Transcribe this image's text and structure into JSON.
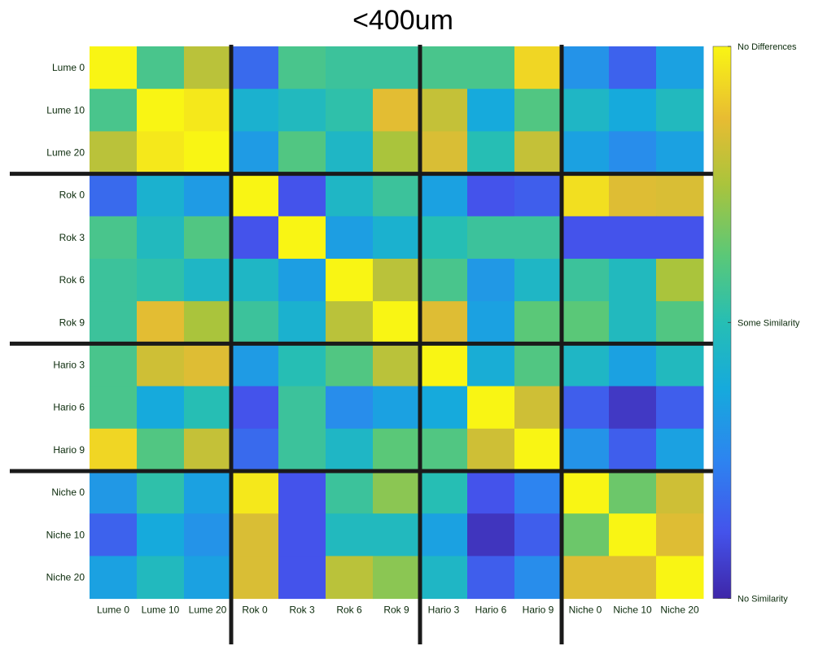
{
  "chart_data": {
    "type": "heatmap",
    "title": "<400um",
    "rows": [
      "Lume 0",
      "Lume 10",
      "Lume 20",
      "Rok 0",
      "Rok 3",
      "Rok 6",
      "Rok 9",
      "Hario 3",
      "Hario 6",
      "Hario 9",
      "Niche 0",
      "Niche 10",
      "Niche 20"
    ],
    "columns": [
      "Lume 0",
      "Lume 10",
      "Lume 20",
      "Rok 0",
      "Rok 3",
      "Rok 6",
      "Rok 9",
      "Hario 3",
      "Hario 6",
      "Hario 9",
      "Niche 0",
      "Niche 10",
      "Niche 20"
    ],
    "values": [
      [
        1.0,
        0.58,
        0.78,
        0.18,
        0.58,
        0.55,
        0.55,
        0.58,
        0.58,
        0.93,
        0.3,
        0.16,
        0.35
      ],
      [
        0.58,
        1.0,
        0.97,
        0.42,
        0.47,
        0.52,
        0.86,
        0.8,
        0.38,
        0.6,
        0.45,
        0.38,
        0.47
      ],
      [
        0.78,
        0.97,
        1.0,
        0.33,
        0.6,
        0.45,
        0.75,
        0.84,
        0.5,
        0.8,
        0.35,
        0.28,
        0.35
      ],
      [
        0.18,
        0.42,
        0.33,
        1.0,
        0.12,
        0.45,
        0.55,
        0.35,
        0.12,
        0.15,
        0.95,
        0.85,
        0.84
      ],
      [
        0.58,
        0.47,
        0.6,
        0.12,
        1.0,
        0.34,
        0.42,
        0.5,
        0.55,
        0.55,
        0.12,
        0.12,
        0.12
      ],
      [
        0.55,
        0.52,
        0.45,
        0.45,
        0.34,
        1.0,
        0.78,
        0.58,
        0.32,
        0.45,
        0.55,
        0.47,
        0.75
      ],
      [
        0.55,
        0.86,
        0.75,
        0.55,
        0.42,
        0.78,
        1.0,
        0.85,
        0.35,
        0.62,
        0.62,
        0.47,
        0.6
      ],
      [
        0.58,
        0.82,
        0.85,
        0.33,
        0.5,
        0.6,
        0.78,
        1.0,
        0.4,
        0.6,
        0.45,
        0.35,
        0.47
      ],
      [
        0.58,
        0.38,
        0.5,
        0.12,
        0.55,
        0.28,
        0.35,
        0.38,
        1.0,
        0.82,
        0.15,
        0.05,
        0.15
      ],
      [
        0.93,
        0.6,
        0.8,
        0.18,
        0.55,
        0.45,
        0.62,
        0.6,
        0.82,
        1.0,
        0.3,
        0.15,
        0.35
      ],
      [
        0.32,
        0.52,
        0.35,
        0.97,
        0.12,
        0.55,
        0.7,
        0.5,
        0.12,
        0.25,
        1.0,
        0.65,
        0.82
      ],
      [
        0.16,
        0.38,
        0.3,
        0.84,
        0.12,
        0.47,
        0.47,
        0.35,
        0.04,
        0.15,
        0.65,
        1.0,
        0.85
      ],
      [
        0.35,
        0.47,
        0.35,
        0.84,
        0.12,
        0.78,
        0.7,
        0.45,
        0.15,
        0.28,
        0.85,
        0.85,
        1.0
      ]
    ],
    "vmin": 0,
    "vmax": 1,
    "colormap": "parula",
    "group_separators_after": [
      3,
      7,
      10
    ],
    "colorbar": {
      "labels": [
        {
          "text": "No Differences",
          "value": 1.0
        },
        {
          "text": "Some Similarity",
          "value": 0.5
        },
        {
          "text": "No Similarity",
          "value": 0.0
        }
      ]
    },
    "grid": false,
    "separator_color": "#1a1a1a",
    "label_color": "#0a2a0a"
  }
}
